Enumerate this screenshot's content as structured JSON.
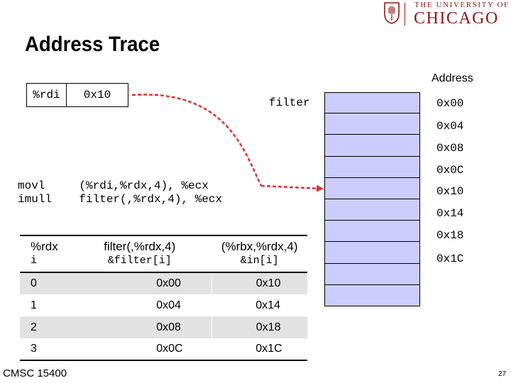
{
  "logo": {
    "top_line": "THE UNIVERSITY OF",
    "main": "CHICAGO"
  },
  "title": "Address Trace",
  "register": {
    "name": "%rdi",
    "value": "0x10"
  },
  "filter_label": "filter",
  "address_header": "Address",
  "memory_addresses": [
    "0x00",
    "0x04",
    "0x08",
    "0x0C",
    "0x10",
    "0x14",
    "0x18",
    "0x1C"
  ],
  "code": [
    {
      "op": "movl",
      "args": "(%rdi,%rdx,4), %ecx"
    },
    {
      "op": "imull",
      "args": "filter(,%rdx,4), %ecx"
    }
  ],
  "table": {
    "headers": [
      "%rdx",
      "filter(,%rdx,4)",
      "(%rbx,%rdx,4)"
    ],
    "subheaders": [
      "i",
      "&filter[i]",
      "&in[i]"
    ],
    "rows": [
      [
        "0",
        "0x00",
        "0x10"
      ],
      [
        "1",
        "0x04",
        "0x14"
      ],
      [
        "2",
        "0x08",
        "0x18"
      ],
      [
        "3",
        "0x0C",
        "0x1C"
      ]
    ]
  },
  "footer": "CMSC 15400",
  "page_number": "27",
  "colors": {
    "memory_fill": "#ccccff",
    "arrow": "#e03030",
    "logo": "#8a1a1a",
    "row_shade": "#e2e2e2"
  }
}
